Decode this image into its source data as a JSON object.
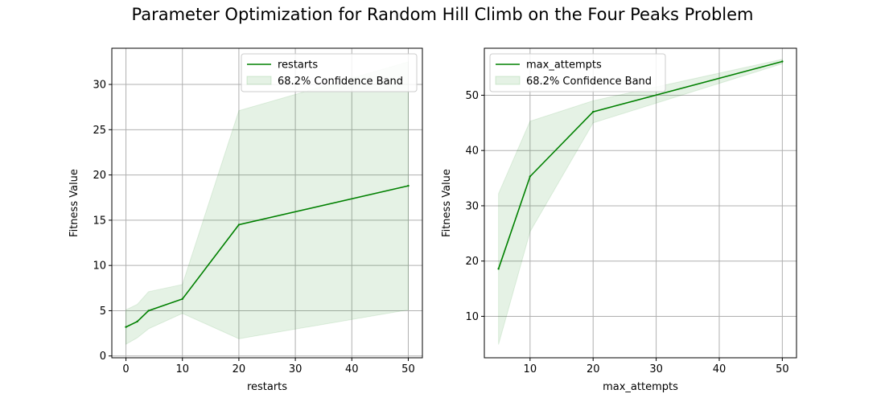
{
  "figure": {
    "title": "Parameter Optimization for Random Hill Climb on the Four Peaks Problem"
  },
  "chart_data": [
    {
      "type": "line",
      "xlabel": "restarts",
      "ylabel": "Fitness Value",
      "xlim": [
        -2.5,
        52.5
      ],
      "ylim": [
        -0.2,
        34.0
      ],
      "xticks": [
        0,
        10,
        20,
        30,
        40,
        50
      ],
      "yticks": [
        0,
        5,
        10,
        15,
        20,
        25,
        30
      ],
      "grid": true,
      "legend_position": "top-right",
      "series": [
        {
          "name": "restarts",
          "color": "#008000",
          "x": [
            0,
            2,
            4,
            10,
            20,
            50
          ],
          "y": [
            3.2,
            3.8,
            5.0,
            6.3,
            14.5,
            18.8
          ],
          "band_label": "68.2% Confidence Band",
          "lower": [
            1.3,
            2.0,
            3.0,
            4.7,
            1.9,
            5.1
          ],
          "upper": [
            5.1,
            5.7,
            7.1,
            7.9,
            27.1,
            32.5
          ]
        }
      ]
    },
    {
      "type": "line",
      "xlabel": "max_attempts",
      "ylabel": "Fitness Value",
      "xlim": [
        2.75,
        52.25
      ],
      "ylim": [
        2.5,
        58.5
      ],
      "xticks": [
        10,
        20,
        30,
        40,
        50
      ],
      "yticks": [
        10,
        20,
        30,
        40,
        50
      ],
      "grid": true,
      "legend_position": "top-left",
      "series": [
        {
          "name": "max_attempts",
          "color": "#008000",
          "x": [
            5,
            10,
            20,
            50
          ],
          "y": [
            18.6,
            35.3,
            47.0,
            56.1
          ],
          "band_label": "68.2% Confidence Band",
          "lower": [
            4.9,
            25.3,
            45.0,
            55.7
          ],
          "upper": [
            32.2,
            45.3,
            49.0,
            56.5
          ]
        }
      ]
    }
  ]
}
